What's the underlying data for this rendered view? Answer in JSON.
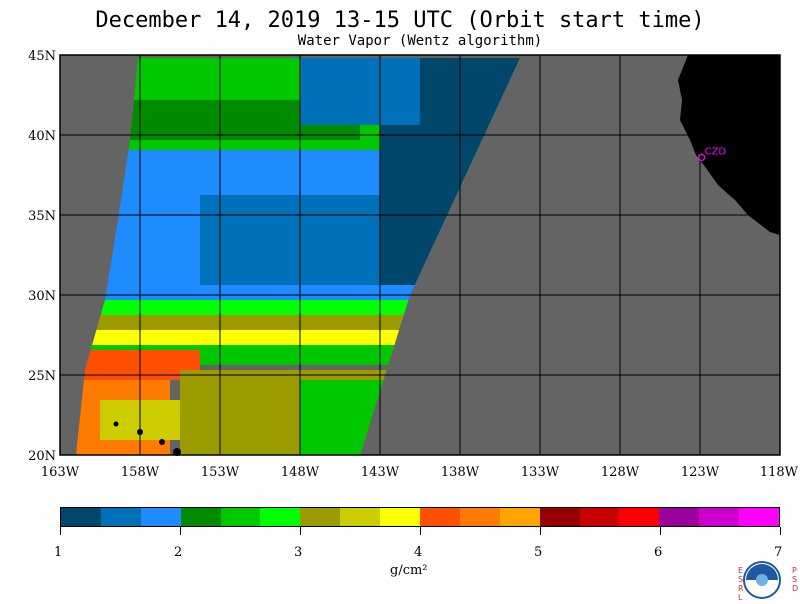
{
  "title": "December 14, 2019  13-15 UTC  (Orbit start time)",
  "subtitle": "Water Vapor (Wentz algorithm)",
  "map": {
    "lon_min": -163,
    "lon_max": -118,
    "lat_min": 20,
    "lat_max": 45,
    "lat_labels": [
      "45N",
      "40N",
      "35N",
      "30N",
      "25N",
      "20N"
    ],
    "lat_values": [
      45,
      40,
      35,
      30,
      25,
      20
    ],
    "lon_labels": [
      "163W",
      "158W",
      "153W",
      "148W",
      "143W",
      "138W",
      "133W",
      "128W",
      "123W",
      "118W"
    ],
    "lon_values": [
      -163,
      -158,
      -153,
      -148,
      -143,
      -138,
      -133,
      -128,
      -123,
      -118
    ],
    "station_label": "CZD",
    "station_lon": -122.9,
    "station_lat": 38.6,
    "colors": {
      "no_data": "#646464",
      "land": "#000000",
      "grid": "#000000",
      "station": "#ff00ff"
    }
  },
  "colorbar": {
    "colors": [
      "#00476b",
      "#0071b8",
      "#1e8cff",
      "#008a00",
      "#00c800",
      "#00ff00",
      "#9b9b00",
      "#cccc00",
      "#ffff00",
      "#ff4f00",
      "#ff7a00",
      "#ffa500",
      "#960000",
      "#c80000",
      "#ff0000",
      "#9b009b",
      "#cc00cc",
      "#ff00ff"
    ],
    "tick_labels": [
      "1",
      "2",
      "3",
      "4",
      "5",
      "6",
      "7"
    ],
    "units": "g/cm²"
  },
  "logo": {
    "left_letters": "ESRL",
    "right_letters": "PSD",
    "icon": "noaa-logo-icon"
  }
}
